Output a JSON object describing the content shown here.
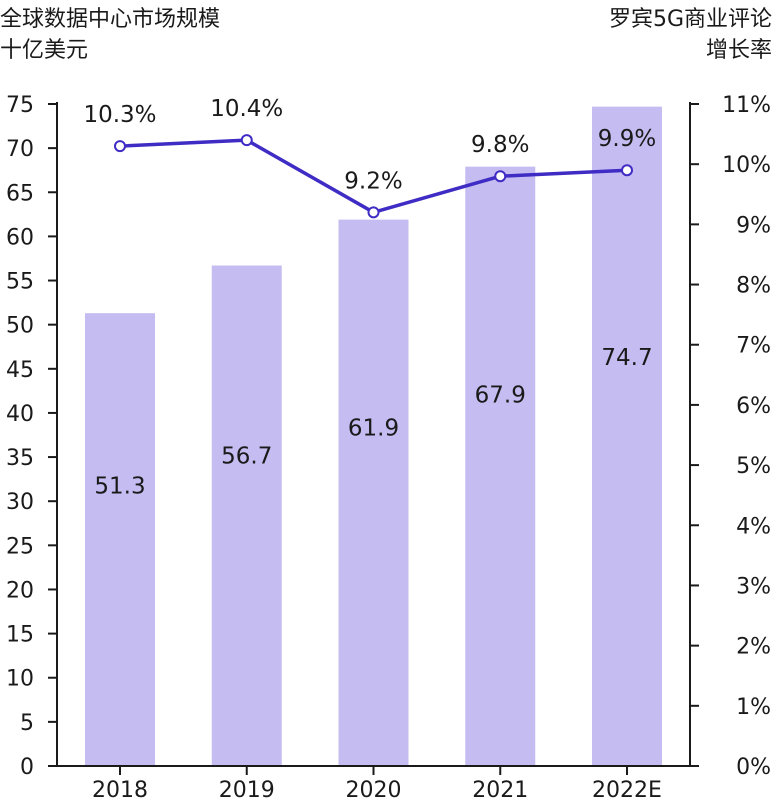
{
  "header": {
    "left_title": "全球数据中心市场规模",
    "left_unit": "十亿美元",
    "right_title": "罗宾5G商业评论",
    "right_unit": "增长率"
  },
  "colors": {
    "bar": "#c5bcf1",
    "line": "#3f2cc4",
    "marker_fill": "#ffffff",
    "axis": "#1a1a1a"
  },
  "chart_data": {
    "type": "bar",
    "categories": [
      "2018",
      "2019",
      "2020",
      "2021",
      "2022E"
    ],
    "series": [
      {
        "type": "bar",
        "axis": "left",
        "values": [
          51.3,
          56.7,
          61.9,
          67.9,
          74.7
        ],
        "labels": [
          "51.3",
          "56.7",
          "61.9",
          "67.9",
          "74.7"
        ]
      },
      {
        "type": "line",
        "axis": "right",
        "values": [
          10.3,
          10.4,
          9.2,
          9.8,
          9.9
        ],
        "labels": [
          "10.3%",
          "10.4%",
          "9.2%",
          "9.8%",
          "9.9%"
        ]
      }
    ],
    "y_left": {
      "min": 0,
      "max": 75,
      "ticks": [
        "0",
        "5",
        "10",
        "15",
        "20",
        "25",
        "30",
        "35",
        "40",
        "45",
        "50",
        "55",
        "60",
        "65",
        "70",
        "75"
      ]
    },
    "y_right": {
      "min": 0,
      "max": 11,
      "ticks": [
        "0%",
        "1%",
        "2%",
        "3%",
        "4%",
        "5%",
        "6%",
        "7%",
        "8%",
        "9%",
        "10%",
        "11%"
      ]
    },
    "grid": false
  }
}
